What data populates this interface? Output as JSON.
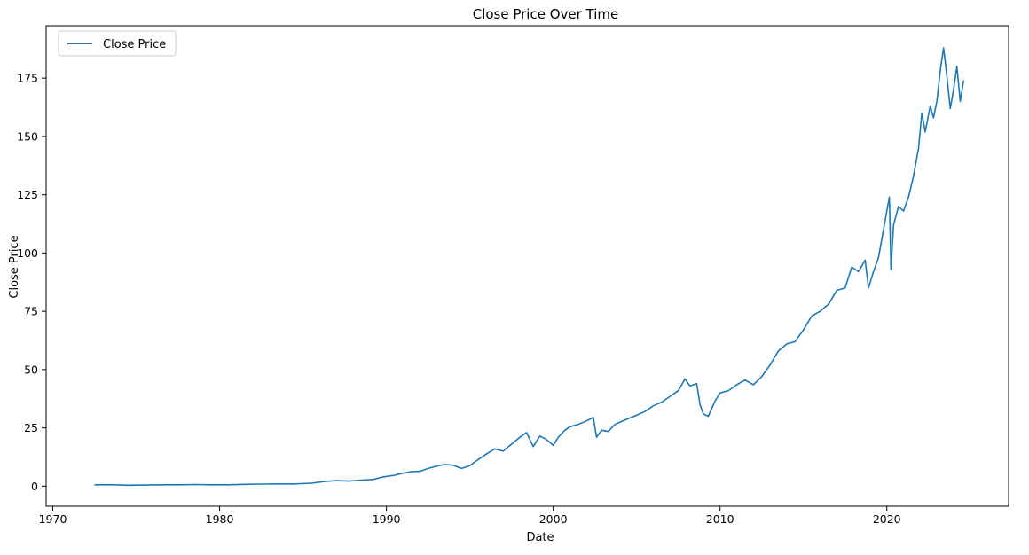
{
  "chart_data": {
    "type": "line",
    "title": "Close Price Over Time",
    "xlabel": "Date",
    "ylabel": "Close Price",
    "xlim": [
      1969.6,
      2027.3
    ],
    "ylim": [
      -8.6,
      197.5
    ],
    "x_ticks": [
      1970,
      1980,
      1990,
      2000,
      2010,
      2020
    ],
    "y_ticks": [
      0,
      25,
      50,
      75,
      100,
      125,
      150,
      175
    ],
    "grid": false,
    "legend_position": "upper-left",
    "color": "#1f77b4",
    "series": [
      {
        "name": "Close Price",
        "points": [
          [
            1972.5,
            0.6
          ],
          [
            1973.5,
            0.6
          ],
          [
            1974.5,
            0.4
          ],
          [
            1975.5,
            0.5
          ],
          [
            1976.5,
            0.6
          ],
          [
            1977.5,
            0.6
          ],
          [
            1978.5,
            0.7
          ],
          [
            1979.5,
            0.6
          ],
          [
            1980.5,
            0.6
          ],
          [
            1981.5,
            0.8
          ],
          [
            1982.5,
            0.9
          ],
          [
            1983.5,
            1.0
          ],
          [
            1984.5,
            1.0
          ],
          [
            1985.5,
            1.3
          ],
          [
            1986.3,
            2.0
          ],
          [
            1987.0,
            2.4
          ],
          [
            1987.8,
            2.2
          ],
          [
            1988.5,
            2.6
          ],
          [
            1989.2,
            2.9
          ],
          [
            1989.8,
            4.0
          ],
          [
            1990.5,
            4.7
          ],
          [
            1991.0,
            5.6
          ],
          [
            1991.5,
            6.2
          ],
          [
            1992.0,
            6.4
          ],
          [
            1992.5,
            7.6
          ],
          [
            1993.0,
            8.6
          ],
          [
            1993.5,
            9.3
          ],
          [
            1994.0,
            9.0
          ],
          [
            1994.5,
            7.6
          ],
          [
            1995.0,
            8.8
          ],
          [
            1995.5,
            11.4
          ],
          [
            1996.0,
            13.8
          ],
          [
            1996.5,
            16.0
          ],
          [
            1997.0,
            15.0
          ],
          [
            1997.5,
            18.0
          ],
          [
            1998.0,
            21.0
          ],
          [
            1998.4,
            23.0
          ],
          [
            1998.8,
            17.0
          ],
          [
            1999.2,
            21.5
          ],
          [
            1999.6,
            20.0
          ],
          [
            2000.0,
            17.5
          ],
          [
            2000.3,
            21.0
          ],
          [
            2000.7,
            24.0
          ],
          [
            2001.0,
            25.5
          ],
          [
            2001.5,
            26.5
          ],
          [
            2002.0,
            28.0
          ],
          [
            2002.4,
            29.5
          ],
          [
            2002.6,
            21.0
          ],
          [
            2002.9,
            24.0
          ],
          [
            2003.3,
            23.5
          ],
          [
            2003.7,
            26.5
          ],
          [
            2004.0,
            27.5
          ],
          [
            2004.5,
            29.0
          ],
          [
            2005.0,
            30.5
          ],
          [
            2005.5,
            32.0
          ],
          [
            2006.0,
            34.5
          ],
          [
            2006.5,
            36.0
          ],
          [
            2007.0,
            38.5
          ],
          [
            2007.5,
            41.0
          ],
          [
            2007.9,
            46.0
          ],
          [
            2008.2,
            43.0
          ],
          [
            2008.6,
            44.0
          ],
          [
            2008.8,
            35.0
          ],
          [
            2009.0,
            31.0
          ],
          [
            2009.3,
            30.0
          ],
          [
            2009.7,
            36.5
          ],
          [
            2010.0,
            40.0
          ],
          [
            2010.5,
            41.0
          ],
          [
            2011.0,
            43.5
          ],
          [
            2011.5,
            45.5
          ],
          [
            2012.0,
            43.5
          ],
          [
            2012.5,
            47.0
          ],
          [
            2013.0,
            52.0
          ],
          [
            2013.5,
            58.0
          ],
          [
            2014.0,
            61.0
          ],
          [
            2014.5,
            62.0
          ],
          [
            2015.0,
            67.0
          ],
          [
            2015.5,
            73.0
          ],
          [
            2016.0,
            75.0
          ],
          [
            2016.5,
            78.0
          ],
          [
            2017.0,
            84.0
          ],
          [
            2017.5,
            85.0
          ],
          [
            2017.9,
            94.0
          ],
          [
            2018.3,
            92.0
          ],
          [
            2018.7,
            97.0
          ],
          [
            2018.9,
            85.0
          ],
          [
            2019.2,
            92.0
          ],
          [
            2019.5,
            98.0
          ],
          [
            2019.7,
            106.0
          ],
          [
            2020.0,
            118.0
          ],
          [
            2020.15,
            124.0
          ],
          [
            2020.25,
            93.0
          ],
          [
            2020.4,
            112.0
          ],
          [
            2020.7,
            120.0
          ],
          [
            2021.0,
            118.0
          ],
          [
            2021.3,
            124.0
          ],
          [
            2021.6,
            133.0
          ],
          [
            2021.9,
            145.0
          ],
          [
            2022.1,
            160.0
          ],
          [
            2022.3,
            152.0
          ],
          [
            2022.6,
            163.0
          ],
          [
            2022.8,
            158.0
          ],
          [
            2023.0,
            165.0
          ],
          [
            2023.2,
            178.0
          ],
          [
            2023.4,
            188.0
          ],
          [
            2023.6,
            176.0
          ],
          [
            2023.8,
            162.0
          ],
          [
            2024.0,
            170.0
          ],
          [
            2024.2,
            180.0
          ],
          [
            2024.4,
            165.0
          ],
          [
            2024.6,
            174.0
          ]
        ]
      }
    ]
  }
}
